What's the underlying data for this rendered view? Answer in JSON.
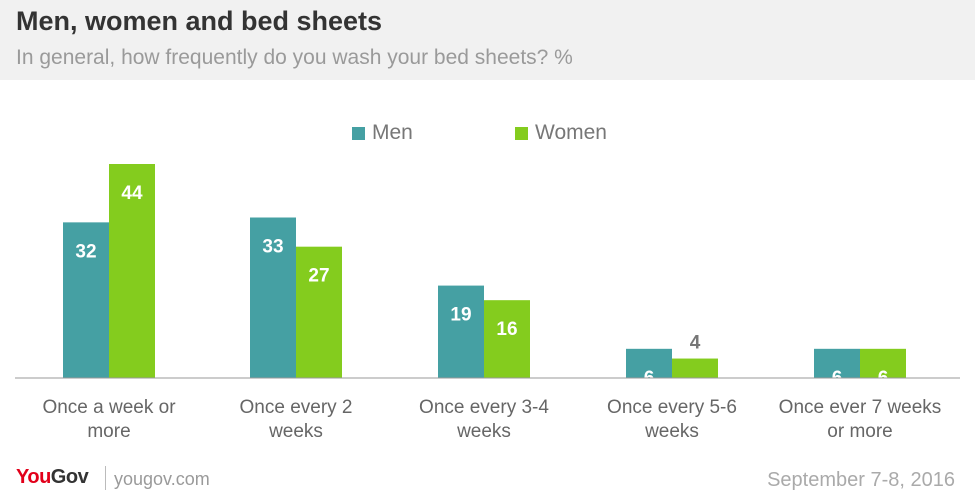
{
  "header": {
    "title": "Men, women and bed sheets",
    "subtitle": "In general, how frequently do you wash your bed sheets? %"
  },
  "legend": [
    {
      "label": "Men",
      "color": "#45a0a3"
    },
    {
      "label": "Women",
      "color": "#84cc1e"
    }
  ],
  "chart_data": {
    "type": "bar",
    "categories": [
      [
        "Once a week or",
        "more"
      ],
      [
        "Once every 2",
        "weeks"
      ],
      [
        "Once every 3-4",
        "weeks"
      ],
      [
        "Once every 5-6",
        "weeks"
      ],
      [
        "Once ever 7 weeks",
        "or more"
      ]
    ],
    "series": [
      {
        "name": "Men",
        "values": [
          32,
          33,
          19,
          6,
          6
        ],
        "color": "#45a0a3"
      },
      {
        "name": "Women",
        "values": [
          44,
          27,
          16,
          4,
          6
        ],
        "color": "#84cc1e"
      }
    ],
    "ylim": [
      0,
      44
    ],
    "grid": false,
    "legend_position": "top-center"
  },
  "footer": {
    "logo_you": "You",
    "logo_gov": "Gov",
    "logo_you_color": "#e2001a",
    "logo_gov_color": "#333333",
    "url": "yougov.com",
    "date": "September 7-8, 2016"
  }
}
